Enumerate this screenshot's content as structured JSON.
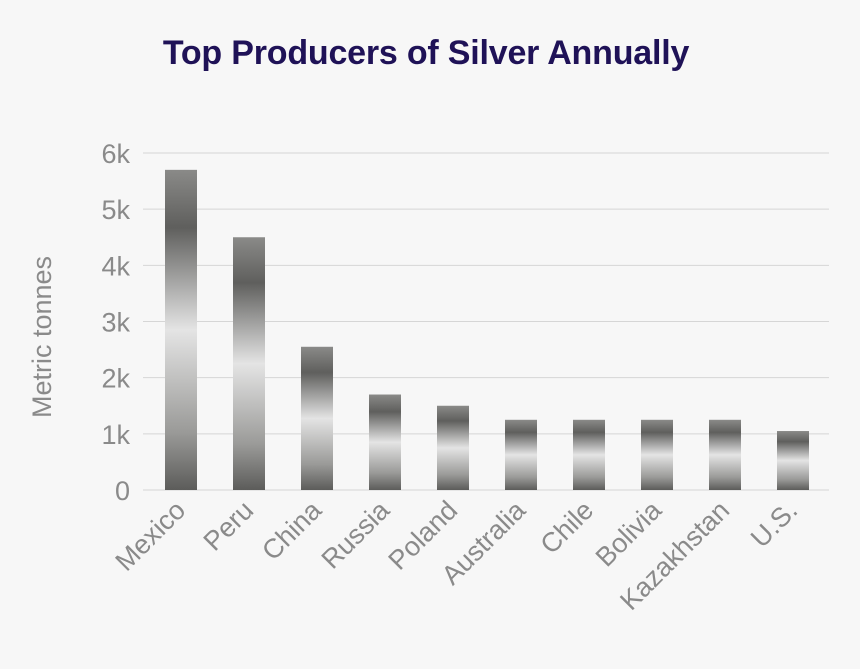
{
  "chart_data": {
    "type": "bar",
    "title": "Top Producers of Silver Annually",
    "xlabel": "",
    "ylabel": "Metric tonnes",
    "categories": [
      "Mexico",
      "Peru",
      "China",
      "Russia",
      "Poland",
      "Australia",
      "Chile",
      "Bolivia",
      "Kazakhstan",
      "U.S."
    ],
    "values": [
      5700,
      4500,
      2550,
      1700,
      1500,
      1250,
      1250,
      1250,
      1250,
      1050
    ],
    "ylim": [
      0,
      6000
    ],
    "yticks": [
      0,
      1000,
      2000,
      3000,
      4000,
      5000,
      6000
    ],
    "ytick_labels": [
      "0",
      "1k",
      "2k",
      "3k",
      "4k",
      "5k",
      "6k"
    ],
    "grid": true,
    "colors": {
      "title": "#1f1257",
      "text": "#8a8a8a",
      "grid": "#d6d6d6",
      "bar_dark": "#5e5e5c",
      "bar_light": "#e2e2e2"
    }
  }
}
